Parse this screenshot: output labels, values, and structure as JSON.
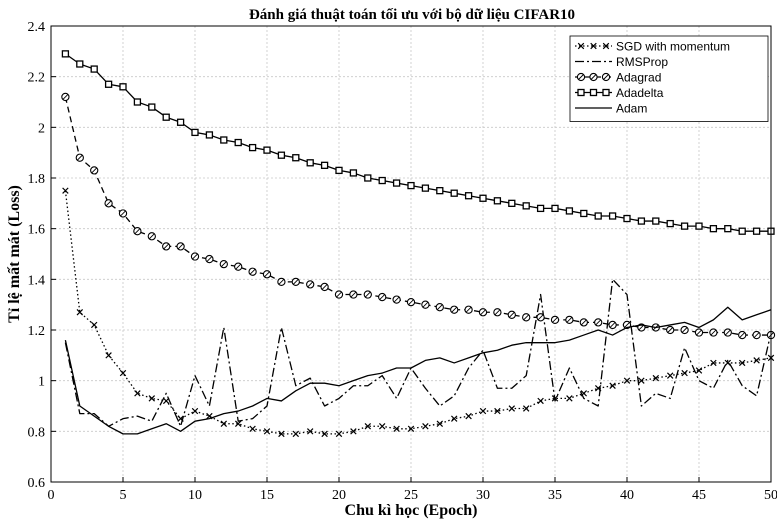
{
  "chart_data": {
    "type": "line",
    "title": "Đánh giá thuật toán tối ưu với bộ dữ liệu CIFAR10",
    "xlabel": "Chu kì học (Epoch)",
    "ylabel": "Tỉ lệ mất mát (Loss)",
    "xlim": [
      0,
      50
    ],
    "ylim": [
      0.6,
      2.4
    ],
    "xticks": [
      0,
      5,
      10,
      15,
      20,
      25,
      30,
      35,
      40,
      45,
      50
    ],
    "yticks": [
      0.6,
      0.8,
      1,
      1.2,
      1.4,
      1.6,
      1.8,
      2,
      2.2,
      2.4
    ],
    "ytick_labels": [
      "0.6",
      "0.8",
      "1",
      "1.2",
      "1.4",
      "1.6",
      "1.8",
      "2",
      "2.2",
      "2.4"
    ],
    "grid": true,
    "legend_position": "top-right",
    "x": [
      1,
      2,
      3,
      4,
      5,
      6,
      7,
      8,
      9,
      10,
      11,
      12,
      13,
      14,
      15,
      16,
      17,
      18,
      19,
      20,
      21,
      22,
      23,
      24,
      25,
      26,
      27,
      28,
      29,
      30,
      31,
      32,
      33,
      34,
      35,
      36,
      37,
      38,
      39,
      40,
      41,
      42,
      43,
      44,
      45,
      46,
      47,
      48,
      49,
      50
    ],
    "series": [
      {
        "name": "SGD with momentum",
        "style": "dotted",
        "marker": "x",
        "color": "#000000",
        "values": [
          1.75,
          1.27,
          1.22,
          1.1,
          1.03,
          0.95,
          0.93,
          0.92,
          0.85,
          0.88,
          0.86,
          0.83,
          0.83,
          0.81,
          0.8,
          0.79,
          0.79,
          0.8,
          0.79,
          0.79,
          0.8,
          0.82,
          0.82,
          0.81,
          0.81,
          0.82,
          0.83,
          0.85,
          0.86,
          0.88,
          0.88,
          0.89,
          0.89,
          0.92,
          0.93,
          0.93,
          0.95,
          0.97,
          0.98,
          1.0,
          1.0,
          1.01,
          1.02,
          1.03,
          1.04,
          1.07,
          1.07,
          1.07,
          1.08,
          1.09
        ]
      },
      {
        "name": "RMSProp",
        "style": "dashdot",
        "marker": "none",
        "color": "#000000",
        "values": [
          1.15,
          0.87,
          0.87,
          0.82,
          0.85,
          0.86,
          0.84,
          0.95,
          0.82,
          1.02,
          0.9,
          1.21,
          0.84,
          0.85,
          0.9,
          1.21,
          0.98,
          1.01,
          0.9,
          0.93,
          0.98,
          0.98,
          1.02,
          0.93,
          1.05,
          0.97,
          0.9,
          0.94,
          1.05,
          1.12,
          0.97,
          0.97,
          1.02,
          1.34,
          0.92,
          1.05,
          0.93,
          0.9,
          1.4,
          1.34,
          0.9,
          0.95,
          0.93,
          1.13,
          1.0,
          0.97,
          1.08,
          0.98,
          0.94,
          1.19
        ]
      },
      {
        "name": "Adagrad",
        "style": "dashed",
        "marker": "circle",
        "color": "#000000",
        "values": [
          2.12,
          1.88,
          1.83,
          1.7,
          1.66,
          1.59,
          1.57,
          1.53,
          1.53,
          1.49,
          1.48,
          1.46,
          1.45,
          1.43,
          1.42,
          1.39,
          1.39,
          1.38,
          1.37,
          1.34,
          1.34,
          1.34,
          1.33,
          1.32,
          1.31,
          1.3,
          1.29,
          1.28,
          1.28,
          1.27,
          1.27,
          1.26,
          1.25,
          1.25,
          1.24,
          1.24,
          1.23,
          1.23,
          1.22,
          1.22,
          1.21,
          1.21,
          1.2,
          1.2,
          1.19,
          1.19,
          1.19,
          1.18,
          1.18,
          1.18
        ]
      },
      {
        "name": "Adadelta",
        "style": "solid",
        "marker": "square",
        "color": "#000000",
        "values": [
          2.29,
          2.25,
          2.23,
          2.17,
          2.16,
          2.1,
          2.08,
          2.04,
          2.02,
          1.98,
          1.97,
          1.95,
          1.94,
          1.92,
          1.91,
          1.89,
          1.88,
          1.86,
          1.85,
          1.83,
          1.82,
          1.8,
          1.79,
          1.78,
          1.77,
          1.76,
          1.75,
          1.74,
          1.73,
          1.72,
          1.71,
          1.7,
          1.69,
          1.68,
          1.68,
          1.67,
          1.66,
          1.65,
          1.65,
          1.64,
          1.63,
          1.63,
          1.62,
          1.61,
          1.61,
          1.6,
          1.6,
          1.59,
          1.59,
          1.59
        ]
      },
      {
        "name": "Adam",
        "style": "solid",
        "marker": "none",
        "color": "#000000",
        "values": [
          1.16,
          0.9,
          0.86,
          0.82,
          0.79,
          0.79,
          0.81,
          0.83,
          0.8,
          0.84,
          0.85,
          0.87,
          0.88,
          0.9,
          0.93,
          0.92,
          0.96,
          0.99,
          0.99,
          0.98,
          1.0,
          1.02,
          1.03,
          1.05,
          1.05,
          1.08,
          1.09,
          1.07,
          1.09,
          1.11,
          1.12,
          1.14,
          1.15,
          1.15,
          1.15,
          1.16,
          1.18,
          1.2,
          1.18,
          1.21,
          1.22,
          1.21,
          1.22,
          1.23,
          1.21,
          1.24,
          1.29,
          1.24,
          1.26,
          1.28
        ]
      }
    ]
  }
}
